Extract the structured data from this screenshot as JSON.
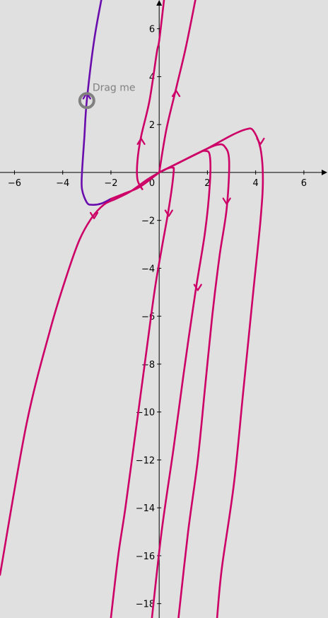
{
  "chart_data": {
    "type": "line",
    "title": "",
    "xlabel": "",
    "ylabel": "",
    "xlim": [
      -6.6,
      7.0
    ],
    "ylim": [
      -18.6,
      7.2
    ],
    "grid": false,
    "x_ticks": [
      -6,
      -4,
      -2,
      2,
      4,
      6
    ],
    "y_ticks": [
      6,
      4,
      2,
      -2,
      -4,
      -6,
      -8,
      -10,
      -12,
      -14,
      -16,
      -18
    ],
    "x_tick_labels": [
      "−6",
      "−4",
      "−2",
      "2",
      "4",
      "6"
    ],
    "y_tick_labels": [
      "6",
      "4",
      "2",
      "−2",
      "−4",
      "−6",
      "−8",
      "−10",
      "−12",
      "−14",
      "−16",
      "−18"
    ],
    "origin_label": "0",
    "handle": {
      "x": -3.0,
      "y": 3.0,
      "label": "Drag me",
      "color": "#808080"
    },
    "colors": {
      "trajectory": "#cc0066",
      "selected_trajectory": "#6a0dad",
      "axis": "#000000"
    },
    "series": [
      {
        "color": "#6a0dad",
        "points": [
          [
            -2.4,
            7.2
          ],
          [
            -2.7,
            5.5
          ],
          [
            -3.0,
            3.0
          ],
          [
            -3.1,
            1.5
          ],
          [
            -3.2,
            0.0
          ],
          [
            -3.2,
            -0.7
          ],
          [
            -3.0,
            -1.25
          ],
          [
            -2.8,
            -1.35
          ],
          [
            -2.4,
            -1.3
          ],
          [
            -2.0,
            -1.1
          ]
        ]
      },
      {
        "color": "#cc0066",
        "points": [
          [
            -2.0,
            -1.1
          ],
          [
            -1.5,
            -0.9
          ],
          [
            -0.8,
            -0.6
          ],
          [
            0.0,
            0.0
          ]
        ]
      },
      {
        "color": "#cc0066",
        "points": [
          [
            -6.6,
            -16.8
          ],
          [
            -5.5,
            -10.5
          ],
          [
            -4.5,
            -6.5
          ],
          [
            -3.8,
            -4.2
          ],
          [
            -3.3,
            -2.8
          ],
          [
            -2.8,
            -1.9
          ],
          [
            -2.3,
            -1.35
          ],
          [
            -1.8,
            -1.1
          ],
          [
            -1.2,
            -0.8
          ],
          [
            -0.5,
            -0.3
          ],
          [
            0.0,
            0.0
          ]
        ]
      },
      {
        "color": "#cc0066",
        "points": [
          [
            -0.7,
            -0.7
          ],
          [
            -0.9,
            -0.3
          ],
          [
            -0.9,
            0.5
          ],
          [
            -0.75,
            1.5
          ],
          [
            -0.4,
            3.0
          ],
          [
            -0.1,
            5.0
          ],
          [
            0.0,
            5.5
          ],
          [
            0.2,
            7.2
          ]
        ]
      },
      {
        "color": "#cc0066",
        "points": [
          [
            0.0,
            0.0
          ],
          [
            0.3,
            1.8
          ],
          [
            0.7,
            3.5
          ],
          [
            1.1,
            5.2
          ],
          [
            1.5,
            7.2
          ]
        ]
      },
      {
        "color": "#cc0066",
        "points": [
          [
            0.0,
            0.0
          ],
          [
            0.3,
            0.15
          ],
          [
            0.55,
            0.2
          ],
          [
            0.6,
            0.0
          ],
          [
            0.4,
            -1.5
          ],
          [
            0.1,
            -3.2
          ],
          [
            -0.2,
            -5.0
          ],
          [
            -0.6,
            -8.0
          ],
          [
            -1.0,
            -11.0
          ],
          [
            -1.4,
            -14.0
          ],
          [
            -1.7,
            -16.0
          ],
          [
            -2.0,
            -18.6
          ]
        ]
      },
      {
        "color": "#cc0066",
        "points": [
          [
            0.0,
            0.0
          ],
          [
            0.8,
            0.4
          ],
          [
            1.6,
            0.8
          ],
          [
            1.9,
            0.9
          ],
          [
            2.1,
            0.7
          ],
          [
            2.1,
            -0.5
          ],
          [
            1.9,
            -2.5
          ],
          [
            1.5,
            -5.0
          ],
          [
            1.0,
            -8.5
          ],
          [
            0.6,
            -11.5
          ],
          [
            0.1,
            -15.0
          ],
          [
            -0.3,
            -18.6
          ]
        ]
      },
      {
        "color": "#cc0066",
        "points": [
          [
            0.0,
            0.0
          ],
          [
            0.9,
            0.45
          ],
          [
            1.9,
            0.95
          ],
          [
            2.4,
            1.15
          ],
          [
            2.7,
            1.1
          ],
          [
            2.9,
            0.5
          ],
          [
            2.8,
            -1.5
          ],
          [
            2.5,
            -3.5
          ],
          [
            2.2,
            -6.0
          ],
          [
            1.9,
            -9.0
          ],
          [
            1.6,
            -12.0
          ],
          [
            1.2,
            -15.0
          ],
          [
            0.8,
            -18.6
          ]
        ]
      },
      {
        "color": "#cc0066",
        "points": [
          [
            0.0,
            0.0
          ],
          [
            1.0,
            0.5
          ],
          [
            2.0,
            1.0
          ],
          [
            3.0,
            1.55
          ],
          [
            3.6,
            1.8
          ],
          [
            3.9,
            1.75
          ],
          [
            4.2,
            1.0
          ],
          [
            4.3,
            -0.3
          ],
          [
            4.2,
            -2.0
          ],
          [
            3.9,
            -5.0
          ],
          [
            3.5,
            -9.0
          ],
          [
            3.1,
            -13.0
          ],
          [
            2.6,
            -16.5
          ],
          [
            2.4,
            -18.6
          ]
        ]
      }
    ],
    "arrows": [
      {
        "color": "#6a0dad",
        "x": -3.0,
        "y": 3.2,
        "direction": "up"
      },
      {
        "color": "#cc0066",
        "x": -0.75,
        "y": 1.3,
        "direction": "up"
      },
      {
        "color": "#cc0066",
        "x": 0.7,
        "y": 3.3,
        "direction": "up"
      },
      {
        "color": "#cc0066",
        "x": 0.4,
        "y": -1.7,
        "direction": "down"
      },
      {
        "color": "#cc0066",
        "x": -2.7,
        "y": -1.8,
        "direction": "down"
      },
      {
        "color": "#cc0066",
        "x": 1.6,
        "y": -4.8,
        "direction": "down"
      },
      {
        "color": "#cc0066",
        "x": 2.8,
        "y": -1.2,
        "direction": "down"
      },
      {
        "color": "#cc0066",
        "x": 4.2,
        "y": 1.3,
        "direction": "down"
      }
    ]
  }
}
